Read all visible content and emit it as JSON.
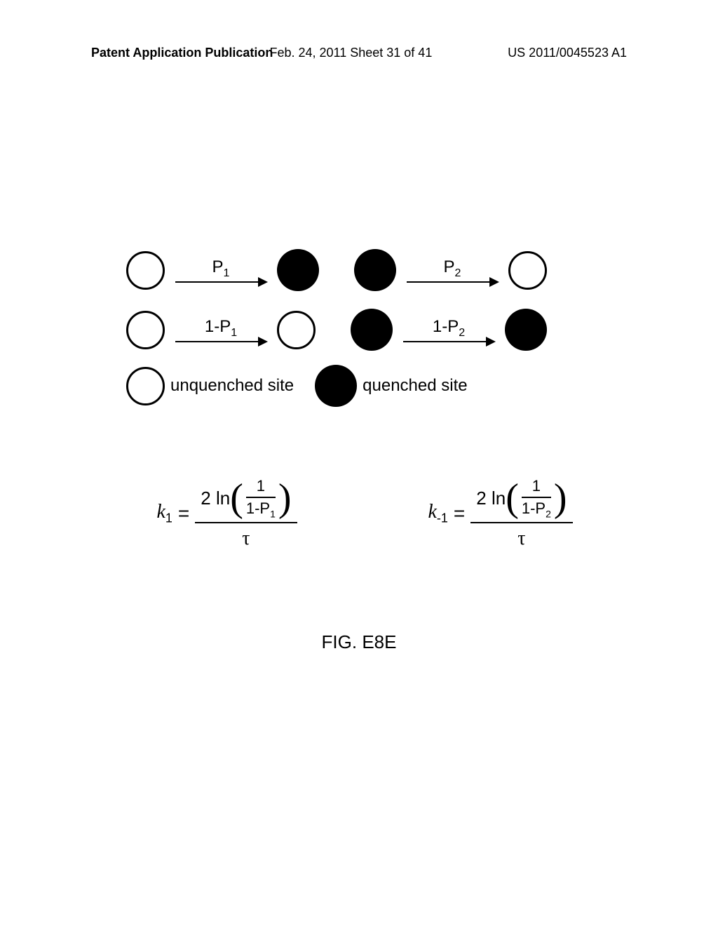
{
  "header": {
    "left": "Patent Application Publication",
    "center": "Feb. 24, 2011  Sheet 31 of 41",
    "right": "US 2011/0045523 A1"
  },
  "diagram": {
    "transitions": {
      "p1_label": "P",
      "p1_sub": "1",
      "one_minus_p1": "1-P",
      "one_minus_p1_sub": "1",
      "p2_label": "P",
      "p2_sub": "2",
      "one_minus_p2": "1-P",
      "one_minus_p2_sub": "2"
    },
    "legend": {
      "unquenched": "unquenched site",
      "quenched": "quenched site"
    }
  },
  "equations": {
    "k1": {
      "lhs": "k",
      "lhs_sub": "1",
      "equals": "=",
      "numerator_prefix": "2 ln",
      "inner_top": "1",
      "inner_bottom": "1-P",
      "inner_bottom_sub": "1",
      "denominator": "τ"
    },
    "k_minus1": {
      "lhs": "k",
      "lhs_sub": "-1",
      "equals": "=",
      "numerator_prefix": "2 ln",
      "inner_top": "1",
      "inner_bottom": "1-P",
      "inner_bottom_sub": "2",
      "denominator": "τ"
    }
  },
  "figure_label": "FIG. E8E"
}
